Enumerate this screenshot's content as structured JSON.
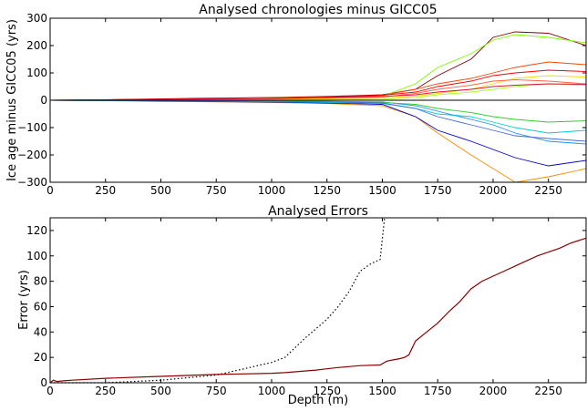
{
  "chart_data": [
    {
      "type": "line",
      "title": "Analysed chronologies minus GICC05",
      "xlabel": "",
      "ylabel": "Ice age minus GICC05 (yrs)",
      "xlim": [
        0,
        2420
      ],
      "ylim": [
        -300,
        300
      ],
      "xticks": [
        "0",
        "250",
        "500",
        "750",
        "1000",
        "1250",
        "1500",
        "1750",
        "2000",
        "2250"
      ],
      "yticks": [
        "300",
        "200",
        "100",
        "0",
        "−100",
        "−200",
        "−300"
      ],
      "grid": false,
      "legend": "none",
      "series": [
        {
          "color": "#8b0000",
          "x": [
            0,
            250,
            500,
            750,
            1000,
            1250,
            1500,
            1650,
            1750,
            1900,
            2000,
            2100,
            2250,
            2420
          ],
          "y": [
            0,
            2,
            5,
            8,
            10,
            14,
            20,
            40,
            90,
            150,
            230,
            250,
            245,
            200
          ]
        },
        {
          "color": "#ff8c00",
          "x": [
            0,
            250,
            500,
            750,
            1000,
            1250,
            1500,
            1650,
            1750,
            1900,
            2000,
            2100,
            2250,
            2420
          ],
          "y": [
            0,
            -2,
            -4,
            -6,
            -8,
            -12,
            -20,
            -60,
            -120,
            -200,
            -250,
            -300,
            -280,
            -250
          ]
        },
        {
          "color": "#0000cd",
          "x": [
            0,
            250,
            500,
            750,
            1000,
            1250,
            1500,
            1650,
            1750,
            1900,
            2000,
            2100,
            2250,
            2420
          ],
          "y": [
            0,
            -1,
            -3,
            -5,
            -7,
            -10,
            -15,
            -60,
            -110,
            -150,
            -180,
            -210,
            -240,
            -220
          ]
        },
        {
          "color": "#7cfc00",
          "x": [
            0,
            250,
            500,
            750,
            1000,
            1250,
            1500,
            1650,
            1750,
            1900,
            2000,
            2100,
            2250,
            2420
          ],
          "y": [
            0,
            1,
            3,
            6,
            9,
            12,
            15,
            60,
            120,
            170,
            220,
            240,
            230,
            210
          ]
        },
        {
          "color": "#ff4500",
          "x": [
            0,
            250,
            500,
            750,
            1000,
            1250,
            1500,
            1650,
            1750,
            1900,
            2000,
            2100,
            2250,
            2420
          ],
          "y": [
            0,
            1,
            2,
            4,
            6,
            10,
            18,
            40,
            60,
            80,
            100,
            120,
            140,
            130
          ]
        },
        {
          "color": "#00ced1",
          "x": [
            0,
            250,
            500,
            750,
            1000,
            1250,
            1500,
            1650,
            1750,
            1900,
            2000,
            2100,
            2250,
            2420
          ],
          "y": [
            0,
            -1,
            -2,
            -4,
            -5,
            -8,
            -12,
            -30,
            -50,
            -60,
            -80,
            -100,
            -120,
            -110
          ]
        },
        {
          "color": "#ffd700",
          "x": [
            0,
            250,
            500,
            750,
            1000,
            1250,
            1500,
            1650,
            1750,
            1900,
            2000,
            2100,
            2250,
            2420
          ],
          "y": [
            0,
            0,
            1,
            2,
            3,
            5,
            8,
            15,
            25,
            40,
            60,
            80,
            90,
            85
          ]
        },
        {
          "color": "#1e90ff",
          "x": [
            0,
            250,
            500,
            750,
            1000,
            1250,
            1500,
            1650,
            1750,
            1900,
            2000,
            2100,
            2250,
            2420
          ],
          "y": [
            0,
            0,
            -1,
            -2,
            -3,
            -4,
            -6,
            -20,
            -40,
            -70,
            -90,
            -120,
            -150,
            -160
          ]
        },
        {
          "color": "#ff0000",
          "x": [
            0,
            250,
            500,
            750,
            1000,
            1250,
            1500,
            1650,
            1750,
            1900,
            2000,
            2100,
            2250,
            2420
          ],
          "y": [
            0,
            2,
            4,
            6,
            8,
            12,
            18,
            30,
            50,
            70,
            90,
            100,
            110,
            105
          ]
        },
        {
          "color": "#32cd32",
          "x": [
            0,
            250,
            500,
            750,
            1000,
            1250,
            1500,
            1650,
            1750,
            1900,
            2000,
            2100,
            2250,
            2420
          ],
          "y": [
            0,
            -1,
            -1,
            -2,
            -3,
            -4,
            -8,
            -15,
            -30,
            -45,
            -60,
            -70,
            -80,
            -75
          ]
        },
        {
          "color": "#ff6347",
          "x": [
            0,
            250,
            500,
            750,
            1000,
            1250,
            1500,
            1650,
            1750,
            1900,
            2000,
            2100,
            2250,
            2420
          ],
          "y": [
            0,
            1,
            2,
            3,
            5,
            8,
            12,
            25,
            40,
            55,
            70,
            75,
            70,
            60
          ]
        },
        {
          "color": "#4169e1",
          "x": [
            0,
            250,
            500,
            750,
            1000,
            1250,
            1500,
            1650,
            1750,
            1900,
            2000,
            2100,
            2250,
            2420
          ],
          "y": [
            0,
            -1,
            -2,
            -3,
            -4,
            -6,
            -10,
            -30,
            -60,
            -90,
            -110,
            -130,
            -140,
            -150
          ]
        },
        {
          "color": "#adff2f",
          "x": [
            0,
            250,
            500,
            750,
            1000,
            1250,
            1500,
            1650,
            1750,
            1900,
            2000,
            2100,
            2250,
            2420
          ],
          "y": [
            0,
            0,
            0,
            1,
            1,
            2,
            4,
            10,
            20,
            30,
            40,
            50,
            60,
            55
          ]
        },
        {
          "color": "#dc143c",
          "x": [
            0,
            250,
            500,
            750,
            1000,
            1250,
            1500,
            1650,
            1750,
            1900,
            2000,
            2100,
            2250,
            2420
          ],
          "y": [
            0,
            1,
            3,
            5,
            7,
            10,
            14,
            20,
            30,
            40,
            50,
            55,
            60,
            58
          ]
        },
        {
          "color": "#000000",
          "x": [
            0,
            250,
            500,
            750,
            1000,
            1250,
            1500,
            1750,
            2000,
            2250,
            2420
          ],
          "y": [
            0,
            0,
            0,
            0,
            0,
            0,
            0,
            0,
            0,
            0,
            0
          ]
        }
      ]
    },
    {
      "type": "line",
      "title": "Analysed Errors",
      "xlabel": "Depth (m)",
      "ylabel": "Error (yrs)",
      "xlim": [
        0,
        2420
      ],
      "ylim": [
        0,
        130
      ],
      "xticks": [
        "0",
        "250",
        "500",
        "750",
        "1000",
        "1250",
        "1500",
        "1750",
        "2000",
        "2250"
      ],
      "yticks": [
        "120",
        "100",
        "80",
        "60",
        "40",
        "20",
        "0"
      ],
      "grid": false,
      "legend": "none",
      "series": [
        {
          "style": "solid",
          "color": "#8b0000",
          "x": [
            0,
            15,
            30,
            60,
            100,
            250,
            500,
            750,
            1000,
            1060,
            1200,
            1250,
            1300,
            1400,
            1490,
            1520,
            1550,
            1580,
            1600,
            1620,
            1650,
            1700,
            1750,
            1800,
            1850,
            1900,
            1950,
            2000,
            2050,
            2100,
            2150,
            2200,
            2250,
            2300,
            2350,
            2420
          ],
          "y": [
            0,
            2,
            1,
            1.5,
            2,
            3.5,
            5,
            6.5,
            7.5,
            8,
            10,
            11,
            12,
            13.5,
            14,
            17,
            18,
            19,
            20,
            22,
            33,
            40,
            47,
            56,
            64,
            74,
            80,
            84,
            88,
            92,
            96,
            100,
            103,
            106,
            110,
            114
          ]
        },
        {
          "style": "dotted",
          "color": "#000000",
          "x": [
            0,
            250,
            500,
            750,
            900,
            1000,
            1060,
            1150,
            1250,
            1300,
            1350,
            1400,
            1450,
            1490,
            1510
          ],
          "y": [
            0,
            0,
            2,
            6,
            12,
            16,
            20,
            35,
            50,
            60,
            72,
            88,
            94,
            97,
            130
          ]
        }
      ]
    }
  ]
}
